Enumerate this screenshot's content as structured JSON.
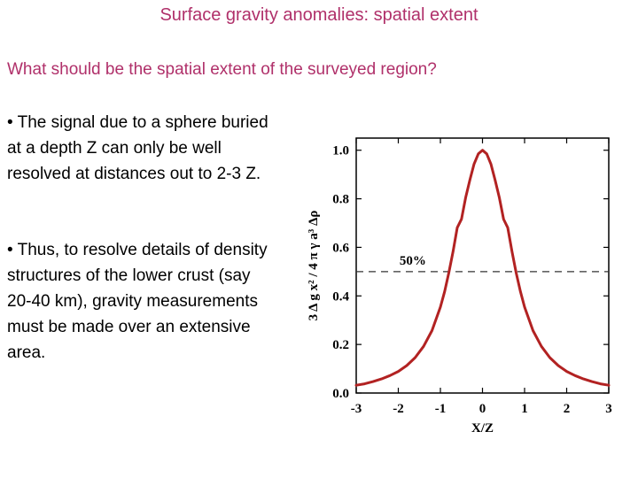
{
  "slide": {
    "title": "Surface gravity anomalies: spatial extent",
    "subtitle": "What should be the spatial extent of the surveyed region?",
    "bullets": [
      "• The signal due to a sphere buried at a depth Z can only be well resolved at distances out to 2-3 Z.",
      "• Thus, to resolve details of density structures of the lower crust (say 20-40 km), gravity measurements must be made over an extensive area."
    ]
  },
  "colors": {
    "title": "#b0306a",
    "curve": "#b22222",
    "axis": "#000000"
  },
  "chart_data": {
    "type": "line",
    "xlabel": "X/Z",
    "ylabel": "3 Δ g x² / 4 π γ a³ Δρ",
    "xlim": [
      -3,
      3
    ],
    "ylim": [
      0,
      1.05
    ],
    "xticks": [
      "-3",
      "-2",
      "-1",
      "0",
      "1",
      "2",
      "3"
    ],
    "yticks": [
      "0.0",
      "0.2",
      "0.4",
      "0.6",
      "0.8",
      "1.0"
    ],
    "reference_line": {
      "y": 0.5,
      "label": "50%",
      "style": "dashed"
    },
    "series": [
      {
        "x": [
          -3,
          -2.8,
          -2.6,
          -2.4,
          -2.2,
          -2,
          -1.8,
          -1.6,
          -1.4,
          -1.2,
          -1,
          -0.9,
          -0.8,
          -0.7,
          -0.6,
          -0.5,
          -0.4,
          -0.3,
          -0.2,
          -0.1,
          0,
          0.1,
          0.2,
          0.3,
          0.4,
          0.5,
          0.6,
          0.7,
          0.8,
          0.9,
          1,
          1.2,
          1.4,
          1.6,
          1.8,
          2,
          2.2,
          2.4,
          2.6,
          2.8,
          3
        ],
        "y": [
          0.032,
          0.038,
          0.047,
          0.058,
          0.072,
          0.089,
          0.113,
          0.146,
          0.192,
          0.257,
          0.354,
          0.418,
          0.495,
          0.583,
          0.681,
          0.716,
          0.805,
          0.878,
          0.943,
          0.985,
          1.0,
          0.985,
          0.943,
          0.878,
          0.805,
          0.716,
          0.681,
          0.583,
          0.495,
          0.418,
          0.354,
          0.257,
          0.192,
          0.146,
          0.113,
          0.089,
          0.072,
          0.058,
          0.047,
          0.038,
          0.032
        ]
      }
    ]
  }
}
